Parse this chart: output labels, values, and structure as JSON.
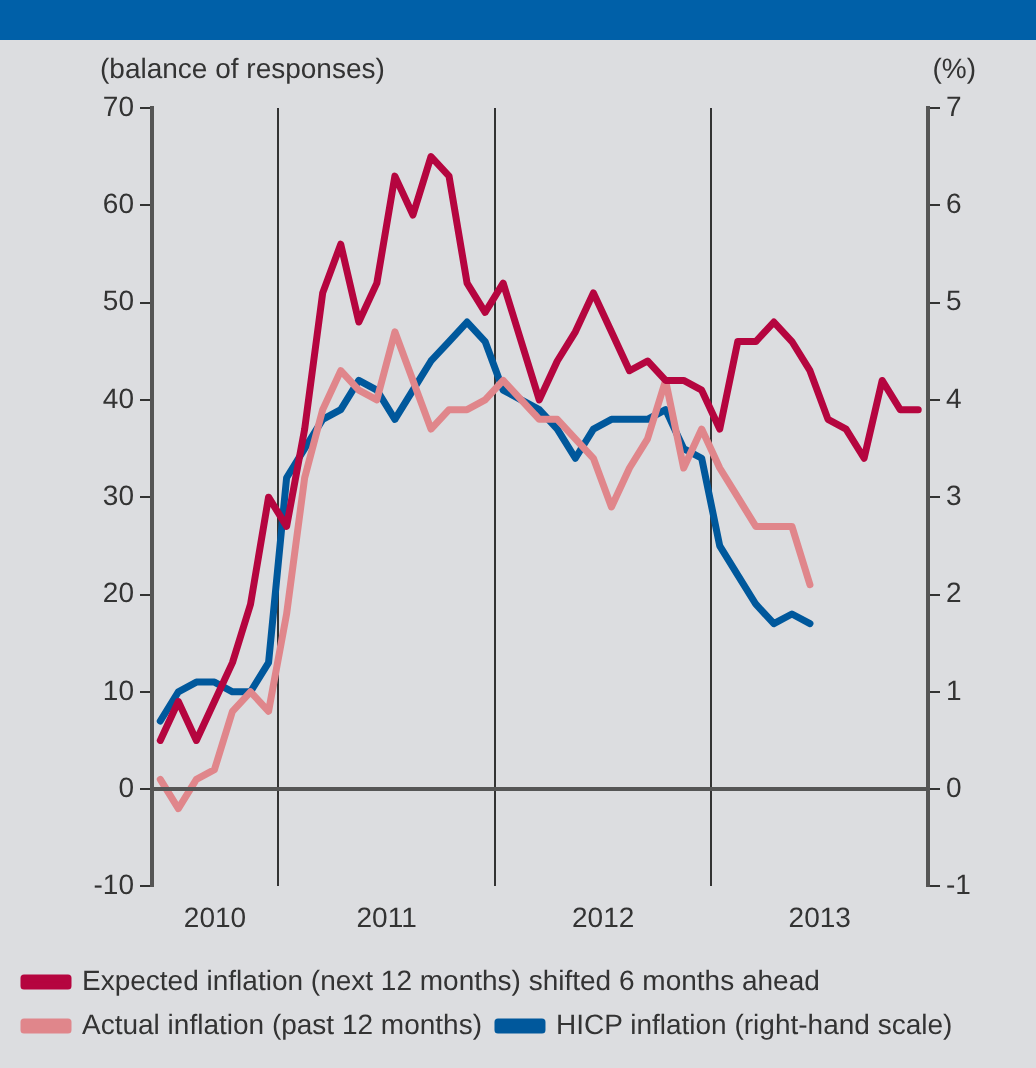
{
  "chart_data": {
    "type": "line",
    "ylabel": "(balance of responses)",
    "y2label": "(%)",
    "x": [
      "2010-06-15",
      "2010-07-15",
      "2010-08-15",
      "2010-09-15",
      "2010-10-15",
      "2010-11-15",
      "2010-12-15",
      "2011-01-15",
      "2011-02-15",
      "2011-03-15",
      "2011-04-15",
      "2011-05-15",
      "2011-06-15",
      "2011-07-15",
      "2011-08-15",
      "2011-09-15",
      "2011-10-15",
      "2011-11-15",
      "2011-12-15",
      "2012-01-15",
      "2012-02-15",
      "2012-03-15",
      "2012-04-15",
      "2012-05-15",
      "2012-06-15",
      "2012-07-15",
      "2012-08-15",
      "2012-09-15",
      "2012-10-15",
      "2012-11-15",
      "2012-12-15",
      "2013-01-15",
      "2013-02-15",
      "2013-03-15",
      "2013-04-15",
      "2013-05-15",
      "2013-06-15",
      "2013-07-15",
      "2013-08-15",
      "2013-09-15",
      "2013-10-15",
      "2013-11-15",
      "2013-12-15"
    ],
    "series": [
      {
        "name": "Expected inflation (next 12 months) shifted 6 months ahead",
        "color": "#b5053f",
        "values": [
          5,
          9,
          5,
          9,
          13,
          19,
          30,
          27,
          37,
          51,
          56,
          48,
          52,
          63,
          59,
          65,
          63,
          52,
          49,
          52,
          46,
          40,
          44,
          47,
          51,
          47,
          43,
          44,
          42,
          42,
          41,
          37,
          46,
          46,
          48,
          46,
          43,
          38,
          37,
          34,
          42,
          39,
          39
        ]
      },
      {
        "name": "Actual inflation (past 12 months)",
        "color": "#e0868b",
        "values": [
          1,
          -2,
          1,
          2,
          8,
          10,
          8,
          18,
          32,
          39,
          43,
          41,
          40,
          47,
          42,
          37,
          39,
          39,
          40,
          42,
          40,
          38,
          38,
          36,
          34,
          29,
          33,
          36,
          42,
          33,
          37,
          33,
          30,
          27,
          27,
          27,
          21,
          null,
          null,
          null,
          null,
          null,
          null
        ]
      },
      {
        "name": "HICP inflation (right-hand scale)",
        "color": "#00589c",
        "axis": "y2",
        "values": [
          0.7,
          1.0,
          1.1,
          1.1,
          1.0,
          1.0,
          1.3,
          3.2,
          3.5,
          3.8,
          3.9,
          4.2,
          4.1,
          3.8,
          4.1,
          4.4,
          4.6,
          4.8,
          4.6,
          4.1,
          4.0,
          3.9,
          3.7,
          3.4,
          3.7,
          3.8,
          3.8,
          3.8,
          3.9,
          3.5,
          3.4,
          2.5,
          2.2,
          1.9,
          1.7,
          1.8,
          1.7,
          null,
          null,
          null,
          null,
          null,
          null
        ]
      }
    ],
    "xlim": [
      "2010-06",
      "2014-01"
    ],
    "xticks": [
      {
        "value": "2010-09-16",
        "label": "2010"
      },
      {
        "value": "2011-01",
        "label": null
      },
      {
        "value": "2011-07",
        "label": "2011"
      },
      {
        "value": "2012-01",
        "label": null
      },
      {
        "value": "2012-07",
        "label": "2012"
      },
      {
        "value": "2013-01",
        "label": null
      },
      {
        "value": "2013-07",
        "label": "2013"
      }
    ],
    "ylim": [
      -10,
      70
    ],
    "yticks": [
      -10,
      0,
      10,
      20,
      30,
      40,
      50,
      60,
      70
    ],
    "y2lim": [
      -1,
      7
    ],
    "y2ticks": [
      -1,
      0,
      1,
      2,
      3,
      4,
      5,
      6,
      7
    ],
    "ref_lines": [
      {
        "axis": "y",
        "value": 0,
        "color": "#555555"
      }
    ],
    "grid": "x",
    "legend": "bottom",
    "marker": "none",
    "line_style": "solid"
  }
}
